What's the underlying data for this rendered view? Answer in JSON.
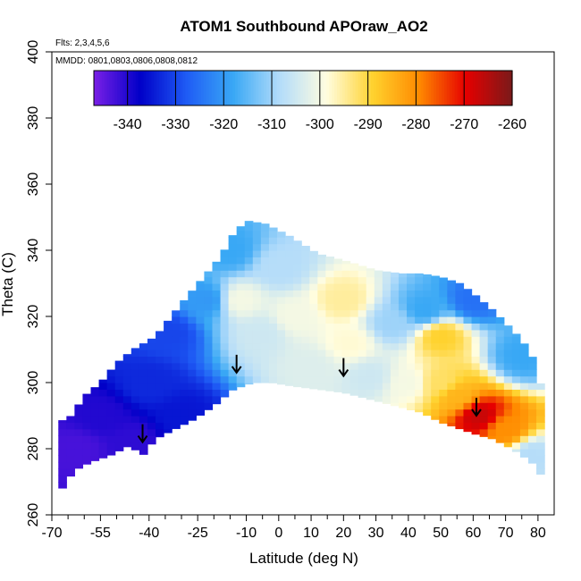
{
  "chart_data": {
    "type": "heatmap",
    "title": "ATOM1 Southbound APOraw_AO2",
    "flights_note": "Flts: 2,3,4,5,6",
    "dates_note": "MMDD: 0801,0803,0806,0808,0812",
    "xlabel": "Latitude (deg N)",
    "ylabel": "Theta (C)",
    "xlim": [
      -70,
      85
    ],
    "ylim": [
      260,
      400
    ],
    "x_tick_labels": [
      "-70",
      "-55",
      "-40",
      "-25",
      "-10",
      "0",
      "10",
      "20",
      "30",
      "40",
      "50",
      "60",
      "70",
      "80"
    ],
    "x_minor_ticks": [
      -65,
      -60,
      -50,
      -45,
      -35,
      -30,
      -20,
      -15,
      -5,
      5,
      15,
      25,
      35,
      45,
      55,
      65,
      75
    ],
    "y_tick_labels": [
      "260",
      "280",
      "300",
      "320",
      "340",
      "360",
      "380",
      "400"
    ],
    "colorbar": {
      "min": -347,
      "max": -260,
      "tick_labels": [
        "-340",
        "-330",
        "-320",
        "-310",
        "-300",
        "-290",
        "-280",
        "-270",
        "-260"
      ],
      "colors": [
        "#7a1fe6",
        "#0000c8",
        "#1f5cf5",
        "#39a8f5",
        "#b3dcfa",
        "#fffde0",
        "#ffd22e",
        "#ff8a00",
        "#e60000",
        "#7a1a1a"
      ]
    },
    "envelope": {
      "top": [
        [
          -68,
          288
        ],
        [
          -64,
          290
        ],
        [
          -60,
          296
        ],
        [
          -55,
          300
        ],
        [
          -50,
          306
        ],
        [
          -45,
          310
        ],
        [
          -38,
          314
        ],
        [
          -30,
          324
        ],
        [
          -24,
          331
        ],
        [
          -18,
          338
        ],
        [
          -14,
          345
        ],
        [
          -10,
          349
        ],
        [
          -4,
          348
        ],
        [
          4,
          344
        ],
        [
          12,
          339
        ],
        [
          20,
          337
        ],
        [
          30,
          334
        ],
        [
          38,
          333
        ],
        [
          44,
          333
        ],
        [
          50,
          332
        ],
        [
          56,
          330
        ],
        [
          60,
          327
        ],
        [
          66,
          322
        ],
        [
          70,
          318
        ],
        [
          75,
          313
        ],
        [
          80,
          305
        ],
        [
          81,
          298
        ]
      ],
      "bottom": [
        [
          81,
          272
        ],
        [
          78,
          276
        ],
        [
          72,
          280
        ],
        [
          66,
          283
        ],
        [
          62,
          284
        ],
        [
          56,
          286
        ],
        [
          50,
          288
        ],
        [
          44,
          291
        ],
        [
          36,
          293
        ],
        [
          28,
          295
        ],
        [
          20,
          297
        ],
        [
          12,
          298
        ],
        [
          4,
          299
        ],
        [
          -2,
          300
        ],
        [
          -8,
          300
        ],
        [
          -14,
          298
        ],
        [
          -20,
          293
        ],
        [
          -26,
          289
        ],
        [
          -32,
          286
        ],
        [
          -38,
          283
        ],
        [
          -42,
          278
        ],
        [
          -46,
          281
        ],
        [
          -52,
          278
        ],
        [
          -58,
          276
        ],
        [
          -62,
          274
        ],
        [
          -66,
          270
        ],
        [
          -68,
          265
        ]
      ]
    },
    "value_field_anchors": [
      {
        "x": -62,
        "y": 280,
        "v": -343
      },
      {
        "x": -55,
        "y": 290,
        "v": -340
      },
      {
        "x": -45,
        "y": 282,
        "v": -341
      },
      {
        "x": -40,
        "y": 300,
        "v": -333
      },
      {
        "x": -30,
        "y": 290,
        "v": -335
      },
      {
        "x": -34,
        "y": 315,
        "v": -330
      },
      {
        "x": -22,
        "y": 325,
        "v": -320
      },
      {
        "x": -15,
        "y": 340,
        "v": -318
      },
      {
        "x": -12,
        "y": 325,
        "v": -300
      },
      {
        "x": -5,
        "y": 315,
        "v": -305
      },
      {
        "x": 0,
        "y": 335,
        "v": -308
      },
      {
        "x": 5,
        "y": 320,
        "v": -300
      },
      {
        "x": 10,
        "y": 305,
        "v": -303
      },
      {
        "x": 20,
        "y": 325,
        "v": -295
      },
      {
        "x": 22,
        "y": 312,
        "v": -298
      },
      {
        "x": 28,
        "y": 302,
        "v": -305
      },
      {
        "x": 35,
        "y": 318,
        "v": -310
      },
      {
        "x": 40,
        "y": 300,
        "v": -300
      },
      {
        "x": 45,
        "y": 322,
        "v": -318
      },
      {
        "x": 50,
        "y": 314,
        "v": -289
      },
      {
        "x": 50,
        "y": 300,
        "v": -292
      },
      {
        "x": 55,
        "y": 296,
        "v": -285
      },
      {
        "x": 62,
        "y": 290,
        "v": -267
      },
      {
        "x": 70,
        "y": 286,
        "v": -280
      },
      {
        "x": 60,
        "y": 325,
        "v": -325
      },
      {
        "x": 75,
        "y": 308,
        "v": -318
      },
      {
        "x": 78,
        "y": 278,
        "v": -308
      }
    ],
    "arrows": [
      {
        "lat": -42,
        "theta": 282
      },
      {
        "lat": -13,
        "theta": 303
      },
      {
        "lat": 20,
        "theta": 302
      },
      {
        "lat": 61,
        "theta": 290
      }
    ]
  }
}
